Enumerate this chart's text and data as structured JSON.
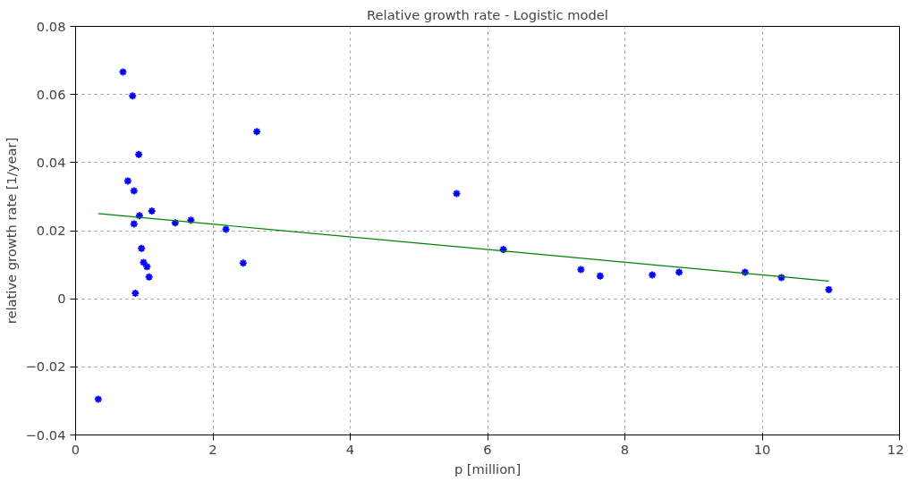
{
  "chart_data": {
    "type": "scatter",
    "title": "Relative growth rate - Logistic model",
    "xlabel": "p [million]",
    "ylabel": "relative growth rate [1/year]",
    "xlim": [
      0,
      12
    ],
    "xticks": [
      0,
      2,
      4,
      6,
      8,
      10,
      12
    ],
    "ylim": [
      -0.04,
      0.08
    ],
    "yticks": [
      -0.04,
      -0.02,
      0,
      0.02,
      0.04,
      0.06,
      0.08
    ],
    "grid": true,
    "series": [
      {
        "marker": "cross",
        "color": "#0000ff",
        "x": [
          0.33,
          0.69,
          0.83,
          0.92,
          0.76,
          0.85,
          0.93,
          0.85,
          1.11,
          1.45,
          1.68,
          2.19,
          0.96,
          0.99,
          1.04,
          1.07,
          0.87,
          2.44,
          2.64,
          5.55,
          6.23,
          7.36,
          7.64,
          8.4,
          8.79,
          9.75,
          10.28,
          10.97
        ],
        "values": [
          -0.0295,
          0.0666,
          0.0596,
          0.0424,
          0.0346,
          0.0317,
          0.0244,
          0.022,
          0.0258,
          0.0223,
          0.0231,
          0.0204,
          0.0148,
          0.0107,
          0.0094,
          0.0064,
          0.0016,
          0.0105,
          0.0491,
          0.0309,
          0.0145,
          0.0086,
          0.0067,
          0.007,
          0.0078,
          0.0078,
          0.0062,
          0.0027
        ]
      },
      {
        "type": "line",
        "color": "#008000",
        "x": [
          0.33,
          10.97
        ],
        "values": [
          0.025,
          0.0052
        ]
      }
    ]
  }
}
